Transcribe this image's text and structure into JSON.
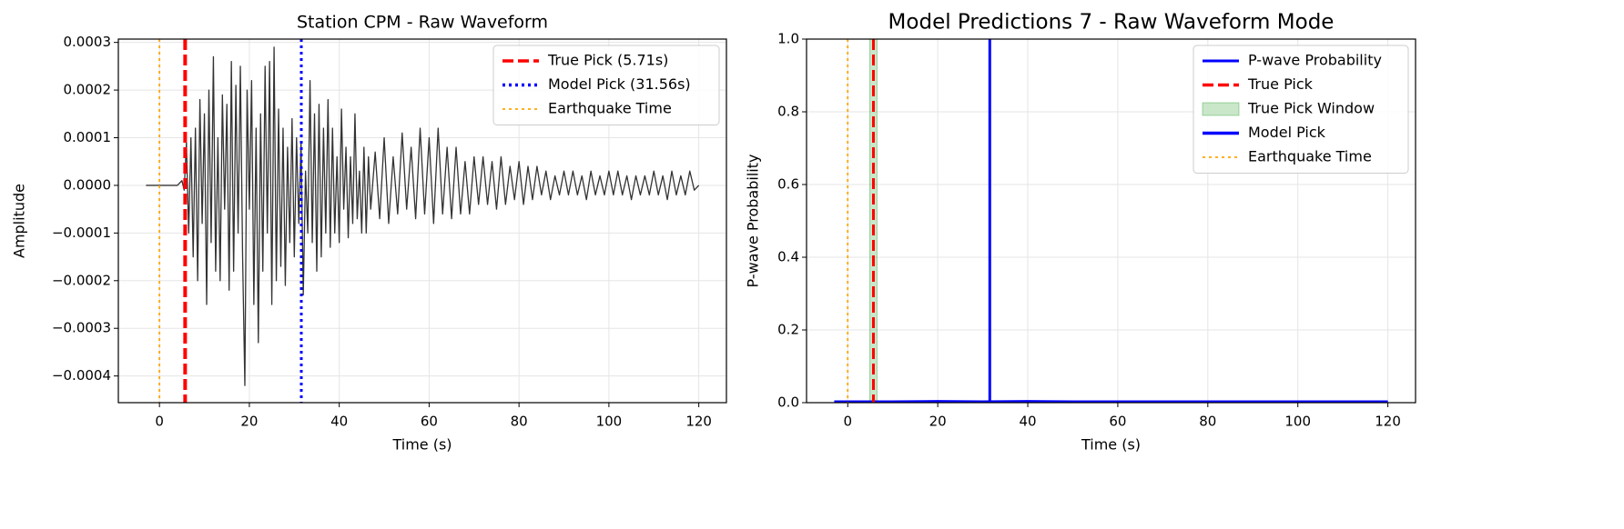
{
  "chart_data": [
    {
      "type": "line",
      "title": "Station CPM - Raw Waveform",
      "x_label": "Time (s)",
      "y_label": "Amplitude",
      "x": [
        -3,
        4,
        5,
        5.5,
        6,
        6.5,
        7,
        7.5,
        8,
        8.5,
        9,
        9.5,
        10,
        10.5,
        11,
        11.5,
        12,
        12.5,
        13,
        13.5,
        14,
        14.5,
        15,
        15.5,
        16,
        16.5,
        17,
        17.5,
        18,
        18.5,
        19,
        19.5,
        20,
        20.5,
        21,
        21.5,
        22,
        22.5,
        23,
        23.5,
        24,
        24.5,
        25,
        25.5,
        26,
        26.5,
        27,
        27.5,
        28,
        28.5,
        29,
        29.5,
        30,
        30.5,
        31,
        31.5,
        32,
        32.5,
        33,
        33.5,
        34,
        34.5,
        35,
        35.5,
        36,
        36.5,
        37,
        37.5,
        38,
        38.5,
        39,
        39.5,
        40,
        40.5,
        41,
        41.5,
        42,
        42.5,
        43,
        43.5,
        44,
        44.5,
        45,
        45.5,
        46,
        46.5,
        47,
        48,
        49,
        50,
        51,
        52,
        53,
        54,
        55,
        56,
        57,
        58,
        59,
        60,
        61,
        62,
        63,
        64,
        65,
        66,
        67,
        68,
        69,
        70,
        71,
        72,
        73,
        74,
        75,
        76,
        77,
        78,
        79,
        80,
        81,
        82,
        83,
        84,
        85,
        86,
        87,
        88,
        89,
        90,
        91,
        92,
        93,
        94,
        95,
        96,
        97,
        98,
        99,
        100,
        101,
        102,
        103,
        104,
        105,
        106,
        107,
        108,
        109,
        110,
        111,
        112,
        113,
        114,
        115,
        116,
        117,
        118,
        119,
        120
      ],
      "series": [
        {
          "color": "#333333",
          "values": [
            0,
            0,
            1e-05,
            -1e-05,
            9e-05,
            -0.0001,
            0.0001,
            -0.00015,
            0.00012,
            -0.0002,
            0.00018,
            -8e-05,
            0.00015,
            -0.00025,
            0.0002,
            -0.00012,
            0.00027,
            -0.00018,
            0.0001,
            -0.0002,
            0.00019,
            -5e-05,
            0.00017,
            -0.00022,
            0.00026,
            -0.00018,
            0.00021,
            -0.0001,
            0.00025,
            -0.00015,
            -0.00042,
            0.0002,
            -5e-05,
            0.00022,
            -0.00025,
            0.00012,
            -0.00033,
            0.00015,
            -0.00018,
            0.00025,
            -0.0001,
            0.00026,
            -0.00025,
            0.00029,
            -0.0002,
            0.00016,
            -0.00017,
            0.00012,
            -0.00021,
            8e-05,
            -0.00012,
            0.00014,
            -0.00015,
            0.0001,
            -8e-05,
            9e-05,
            -0.00023,
            3e-05,
            -0.0001,
            0.00022,
            -0.00012,
            0.00015,
            -0.00018,
            0.00017,
            -0.00015,
            0.00012,
            -0.0001,
            0.00018,
            -0.00013,
            0.00012,
            -0.0001,
            6e-05,
            -0.00012,
            0.00016,
            -5e-05,
            8e-05,
            -0.00011,
            6e-05,
            -8e-05,
            0.00015,
            -7e-05,
            3e-05,
            -0.0001,
            8e-05,
            -0.0001,
            6e-05,
            -5e-05,
            7e-05,
            -7e-05,
            0.0001,
            -8e-05,
            6e-05,
            -6e-05,
            0.00011,
            -5e-05,
            8e-05,
            -7e-05,
            0.00012,
            -6e-05,
            0.0001,
            -8e-05,
            0.00012,
            -6e-05,
            8e-05,
            -7e-05,
            8e-05,
            -6e-05,
            5e-05,
            -6e-05,
            6e-05,
            -4e-05,
            6e-05,
            -4e-05,
            5e-05,
            -5e-05,
            6e-05,
            -4e-05,
            4e-05,
            -3e-05,
            5e-05,
            -4e-05,
            4e-05,
            -3e-05,
            4e-05,
            -2e-05,
            3e-05,
            -3e-05,
            2e-05,
            -2e-05,
            3e-05,
            -2e-05,
            3e-05,
            -2e-05,
            2e-05,
            -3e-05,
            3e-05,
            -2e-05,
            2e-05,
            -2e-05,
            3e-05,
            -2e-05,
            3e-05,
            -2e-05,
            2e-05,
            -3e-05,
            2e-05,
            -2e-05,
            2e-05,
            -2e-05,
            3e-05,
            -2e-05,
            2e-05,
            -3e-05,
            3e-05,
            -2e-05,
            2e-05,
            -2e-05,
            3e-05,
            -1e-05,
            0
          ]
        }
      ],
      "overlays": [
        {
          "kind": "vline",
          "name": "True Pick (5.71s)",
          "x": 5.71,
          "color": "#ff0000",
          "dash": "dashed"
        },
        {
          "kind": "vline",
          "name": "Model Pick (31.56s)",
          "x": 31.56,
          "color": "#0000ff",
          "dash": "dotted"
        },
        {
          "kind": "vline",
          "name": "Earthquake Time",
          "x": 0,
          "color": "#ffa500",
          "dash": "dotted"
        }
      ],
      "xlim": [
        -9.15,
        126.15
      ],
      "ylim": [
        -0.000456,
        0.000307
      ],
      "xticks": [
        0,
        20,
        40,
        60,
        80,
        100,
        120
      ],
      "yticks": [
        {
          "value": -0.0004,
          "label": "−0.0004"
        },
        {
          "value": -0.0003,
          "label": "−0.0003"
        },
        {
          "value": -0.0002,
          "label": "−0.0002"
        },
        {
          "value": -0.0001,
          "label": "−0.0001"
        },
        {
          "value": 0,
          "label": "0.0000"
        },
        {
          "value": 0.0001,
          "label": "0.0001"
        },
        {
          "value": 0.0002,
          "label": "0.0002"
        },
        {
          "value": 0.0003,
          "label": "0.0003"
        }
      ],
      "grid": true,
      "legend": "upper right"
    },
    {
      "type": "line",
      "title": "Model Predictions 7 - Raw Waveform Mode",
      "x_label": "Time (s)",
      "y_label": "P-wave Probability",
      "x": [
        -3,
        10,
        20,
        30,
        40,
        50,
        60,
        80,
        100,
        120
      ],
      "series": [
        {
          "name": "P-wave Probability",
          "color": "#0000ff",
          "values": [
            0.003,
            0.003,
            0.004,
            0.003,
            0.004,
            0.003,
            0.003,
            0.003,
            0.003,
            0.003
          ]
        }
      ],
      "overlays": [
        {
          "kind": "vline",
          "name": "True Pick",
          "x": 5.71,
          "color": "#ff0000",
          "dash": "dashed"
        },
        {
          "kind": "span",
          "name": "True Pick Window",
          "x": [
            4.91,
            6.51
          ],
          "color": "#2ca02c"
        },
        {
          "kind": "vline",
          "name": "Model Pick",
          "x": 31.56,
          "color": "#0000ff",
          "dash": "solid"
        },
        {
          "kind": "vline",
          "name": "Earthquake Time",
          "x": 0,
          "color": "#ffa500",
          "dash": "dotted"
        }
      ],
      "xlim": [
        -9.15,
        126.15
      ],
      "ylim": [
        0,
        1
      ],
      "xticks": [
        0,
        20,
        40,
        60,
        80,
        100,
        120
      ],
      "yticks": [
        {
          "value": 0,
          "label": "0.0"
        },
        {
          "value": 0.2,
          "label": "0.2"
        },
        {
          "value": 0.4,
          "label": "0.4"
        },
        {
          "value": 0.6,
          "label": "0.6"
        },
        {
          "value": 0.8,
          "label": "0.8"
        },
        {
          "value": 1,
          "label": "1.0"
        }
      ],
      "grid": true,
      "legend": "upper right"
    }
  ]
}
